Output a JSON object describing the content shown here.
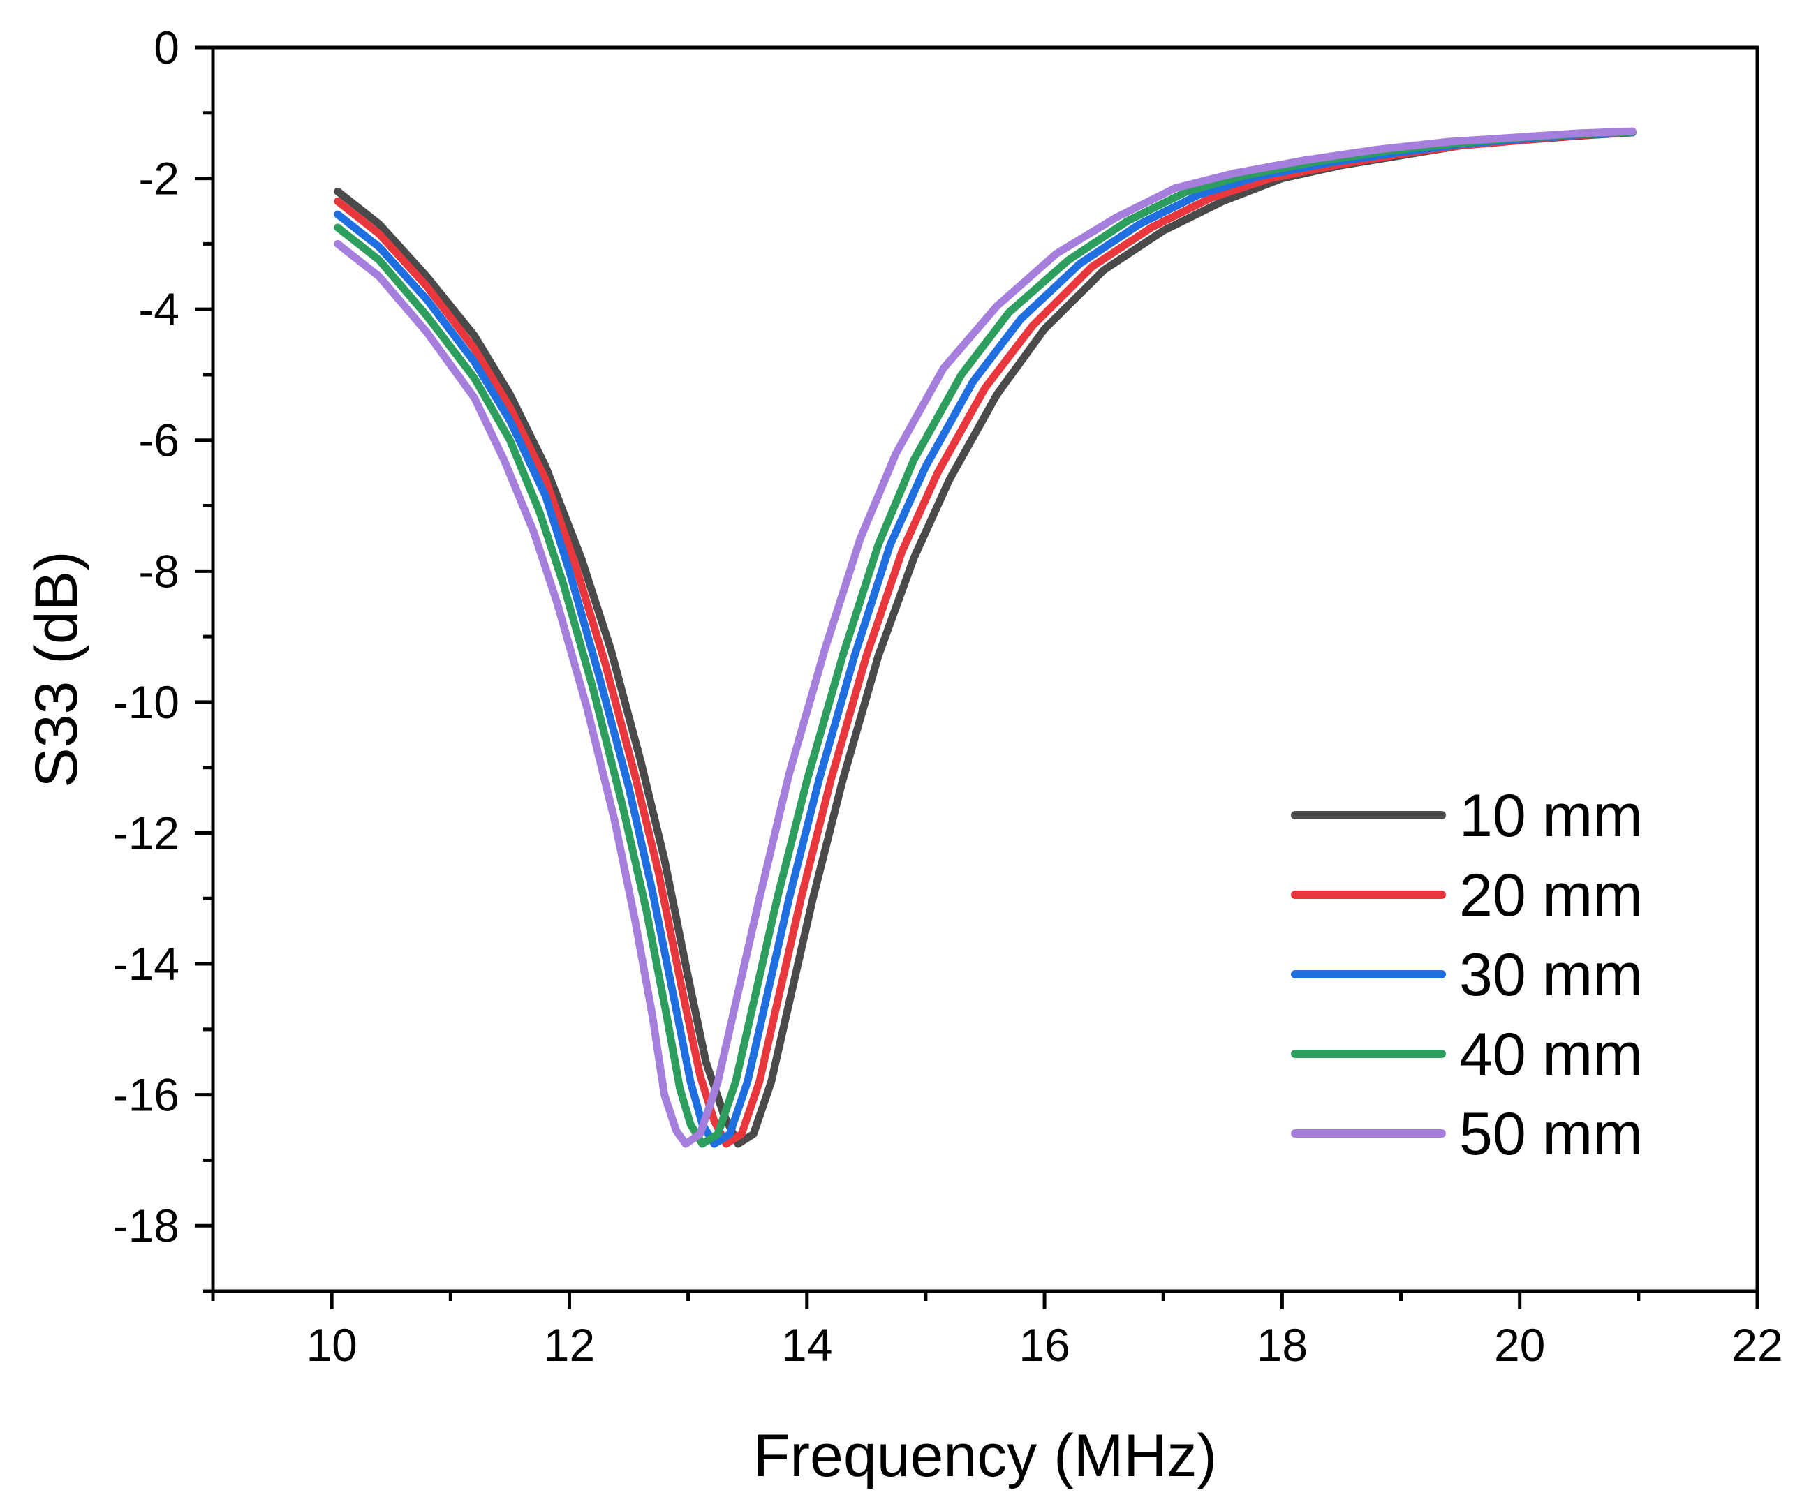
{
  "chart_data": {
    "type": "line",
    "title": "",
    "xlabel": "Frequency (MHz)",
    "ylabel": "S33 (dB)",
    "xlim": [
      9,
      22
    ],
    "ylim": [
      -19,
      0
    ],
    "x_major_ticks": [
      10,
      12,
      14,
      16,
      18,
      20,
      22
    ],
    "x_tick_labels": [
      "10",
      "12",
      "14",
      "16",
      "18",
      "20",
      "22"
    ],
    "x_minor_ticks": [
      9,
      11,
      13,
      15,
      17,
      19,
      21
    ],
    "y_major_ticks": [
      0,
      -2,
      -4,
      -6,
      -8,
      -10,
      -12,
      -14,
      -16,
      -18
    ],
    "y_tick_labels": [
      "0",
      "-2",
      "-4",
      "-6",
      "-8",
      "-10",
      "-12",
      "-14",
      "-16",
      "-18"
    ],
    "y_minor_ticks": [
      -1,
      -3,
      -5,
      -7,
      -9,
      -11,
      -13,
      -15,
      -17,
      -19
    ],
    "grid": false,
    "legend_position": "right",
    "series": [
      {
        "name": "10 mm",
        "color": "#4a4a4a",
        "points": [
          [
            10.05,
            -2.2
          ],
          [
            10.4,
            -2.7
          ],
          [
            10.8,
            -3.5
          ],
          [
            11.2,
            -4.4
          ],
          [
            11.5,
            -5.3
          ],
          [
            11.8,
            -6.4
          ],
          [
            12.1,
            -7.8
          ],
          [
            12.35,
            -9.2
          ],
          [
            12.6,
            -10.9
          ],
          [
            12.8,
            -12.4
          ],
          [
            13.0,
            -14.2
          ],
          [
            13.15,
            -15.5
          ],
          [
            13.3,
            -16.3
          ],
          [
            13.42,
            -16.75
          ],
          [
            13.55,
            -16.6
          ],
          [
            13.7,
            -15.8
          ],
          [
            13.85,
            -14.6
          ],
          [
            14.05,
            -13.0
          ],
          [
            14.3,
            -11.2
          ],
          [
            14.6,
            -9.3
          ],
          [
            14.9,
            -7.8
          ],
          [
            15.2,
            -6.6
          ],
          [
            15.6,
            -5.3
          ],
          [
            16.0,
            -4.3
          ],
          [
            16.5,
            -3.4
          ],
          [
            17.0,
            -2.8
          ],
          [
            17.5,
            -2.35
          ],
          [
            18.0,
            -2.0
          ],
          [
            18.5,
            -1.8
          ],
          [
            19.0,
            -1.65
          ],
          [
            19.5,
            -1.5
          ],
          [
            20.0,
            -1.42
          ],
          [
            20.5,
            -1.35
          ],
          [
            20.95,
            -1.3
          ]
        ]
      },
      {
        "name": "20 mm",
        "color": "#e8383d",
        "points": [
          [
            10.05,
            -2.35
          ],
          [
            10.4,
            -2.85
          ],
          [
            10.8,
            -3.65
          ],
          [
            11.2,
            -4.6
          ],
          [
            11.5,
            -5.5
          ],
          [
            11.8,
            -6.6
          ],
          [
            12.05,
            -7.9
          ],
          [
            12.3,
            -9.4
          ],
          [
            12.55,
            -11.1
          ],
          [
            12.75,
            -12.6
          ],
          [
            12.95,
            -14.4
          ],
          [
            13.1,
            -15.7
          ],
          [
            13.22,
            -16.4
          ],
          [
            13.32,
            -16.75
          ],
          [
            13.45,
            -16.6
          ],
          [
            13.6,
            -15.8
          ],
          [
            13.75,
            -14.6
          ],
          [
            13.95,
            -13.0
          ],
          [
            14.2,
            -11.2
          ],
          [
            14.5,
            -9.3
          ],
          [
            14.8,
            -7.7
          ],
          [
            15.1,
            -6.5
          ],
          [
            15.5,
            -5.2
          ],
          [
            15.9,
            -4.25
          ],
          [
            16.4,
            -3.35
          ],
          [
            16.9,
            -2.75
          ],
          [
            17.4,
            -2.3
          ],
          [
            17.9,
            -2.0
          ],
          [
            18.5,
            -1.78
          ],
          [
            19.0,
            -1.63
          ],
          [
            19.5,
            -1.5
          ],
          [
            20.0,
            -1.42
          ],
          [
            20.5,
            -1.34
          ],
          [
            20.95,
            -1.3
          ]
        ]
      },
      {
        "name": "30 mm",
        "color": "#1f6fe0",
        "points": [
          [
            10.05,
            -2.55
          ],
          [
            10.4,
            -3.05
          ],
          [
            10.8,
            -3.85
          ],
          [
            11.2,
            -4.8
          ],
          [
            11.5,
            -5.7
          ],
          [
            11.8,
            -6.85
          ],
          [
            12.0,
            -8.0
          ],
          [
            12.25,
            -9.6
          ],
          [
            12.5,
            -11.3
          ],
          [
            12.7,
            -12.9
          ],
          [
            12.9,
            -14.7
          ],
          [
            13.02,
            -15.8
          ],
          [
            13.12,
            -16.45
          ],
          [
            13.22,
            -16.75
          ],
          [
            13.35,
            -16.6
          ],
          [
            13.5,
            -15.8
          ],
          [
            13.65,
            -14.6
          ],
          [
            13.85,
            -13.0
          ],
          [
            14.1,
            -11.2
          ],
          [
            14.4,
            -9.3
          ],
          [
            14.7,
            -7.6
          ],
          [
            15.0,
            -6.4
          ],
          [
            15.4,
            -5.1
          ],
          [
            15.8,
            -4.15
          ],
          [
            16.3,
            -3.3
          ],
          [
            16.8,
            -2.7
          ],
          [
            17.3,
            -2.25
          ],
          [
            17.8,
            -1.97
          ],
          [
            18.4,
            -1.76
          ],
          [
            19.0,
            -1.6
          ],
          [
            19.5,
            -1.48
          ],
          [
            20.0,
            -1.4
          ],
          [
            20.5,
            -1.33
          ],
          [
            20.95,
            -1.3
          ]
        ]
      },
      {
        "name": "40 mm",
        "color": "#2e9e5e",
        "points": [
          [
            10.05,
            -2.75
          ],
          [
            10.4,
            -3.25
          ],
          [
            10.8,
            -4.1
          ],
          [
            11.2,
            -5.05
          ],
          [
            11.5,
            -6.0
          ],
          [
            11.75,
            -7.1
          ],
          [
            11.95,
            -8.2
          ],
          [
            12.2,
            -9.8
          ],
          [
            12.45,
            -11.6
          ],
          [
            12.65,
            -13.2
          ],
          [
            12.82,
            -14.8
          ],
          [
            12.93,
            -15.9
          ],
          [
            13.02,
            -16.45
          ],
          [
            13.12,
            -16.75
          ],
          [
            13.25,
            -16.6
          ],
          [
            13.4,
            -15.8
          ],
          [
            13.55,
            -14.6
          ],
          [
            13.75,
            -13.0
          ],
          [
            14.0,
            -11.2
          ],
          [
            14.3,
            -9.3
          ],
          [
            14.6,
            -7.6
          ],
          [
            14.9,
            -6.3
          ],
          [
            15.3,
            -5.0
          ],
          [
            15.7,
            -4.05
          ],
          [
            16.2,
            -3.25
          ],
          [
            16.7,
            -2.65
          ],
          [
            17.2,
            -2.2
          ],
          [
            17.7,
            -1.95
          ],
          [
            18.3,
            -1.74
          ],
          [
            18.9,
            -1.58
          ],
          [
            19.5,
            -1.46
          ],
          [
            20.0,
            -1.38
          ],
          [
            20.5,
            -1.32
          ],
          [
            20.95,
            -1.29
          ]
        ]
      },
      {
        "name": "50 mm",
        "color": "#a67fdd",
        "points": [
          [
            10.05,
            -3.0
          ],
          [
            10.4,
            -3.5
          ],
          [
            10.8,
            -4.35
          ],
          [
            11.2,
            -5.35
          ],
          [
            11.45,
            -6.3
          ],
          [
            11.7,
            -7.4
          ],
          [
            11.9,
            -8.5
          ],
          [
            12.15,
            -10.1
          ],
          [
            12.38,
            -11.8
          ],
          [
            12.55,
            -13.3
          ],
          [
            12.7,
            -14.8
          ],
          [
            12.8,
            -16.0
          ],
          [
            12.9,
            -16.55
          ],
          [
            12.98,
            -16.75
          ],
          [
            13.1,
            -16.6
          ],
          [
            13.25,
            -15.8
          ],
          [
            13.4,
            -14.6
          ],
          [
            13.6,
            -13.0
          ],
          [
            13.85,
            -11.1
          ],
          [
            14.15,
            -9.2
          ],
          [
            14.45,
            -7.5
          ],
          [
            14.75,
            -6.2
          ],
          [
            15.15,
            -4.9
          ],
          [
            15.6,
            -3.95
          ],
          [
            16.1,
            -3.15
          ],
          [
            16.6,
            -2.6
          ],
          [
            17.1,
            -2.15
          ],
          [
            17.6,
            -1.92
          ],
          [
            18.2,
            -1.72
          ],
          [
            18.8,
            -1.56
          ],
          [
            19.4,
            -1.44
          ],
          [
            20.0,
            -1.37
          ],
          [
            20.5,
            -1.31
          ],
          [
            20.95,
            -1.28
          ]
        ]
      }
    ]
  }
}
